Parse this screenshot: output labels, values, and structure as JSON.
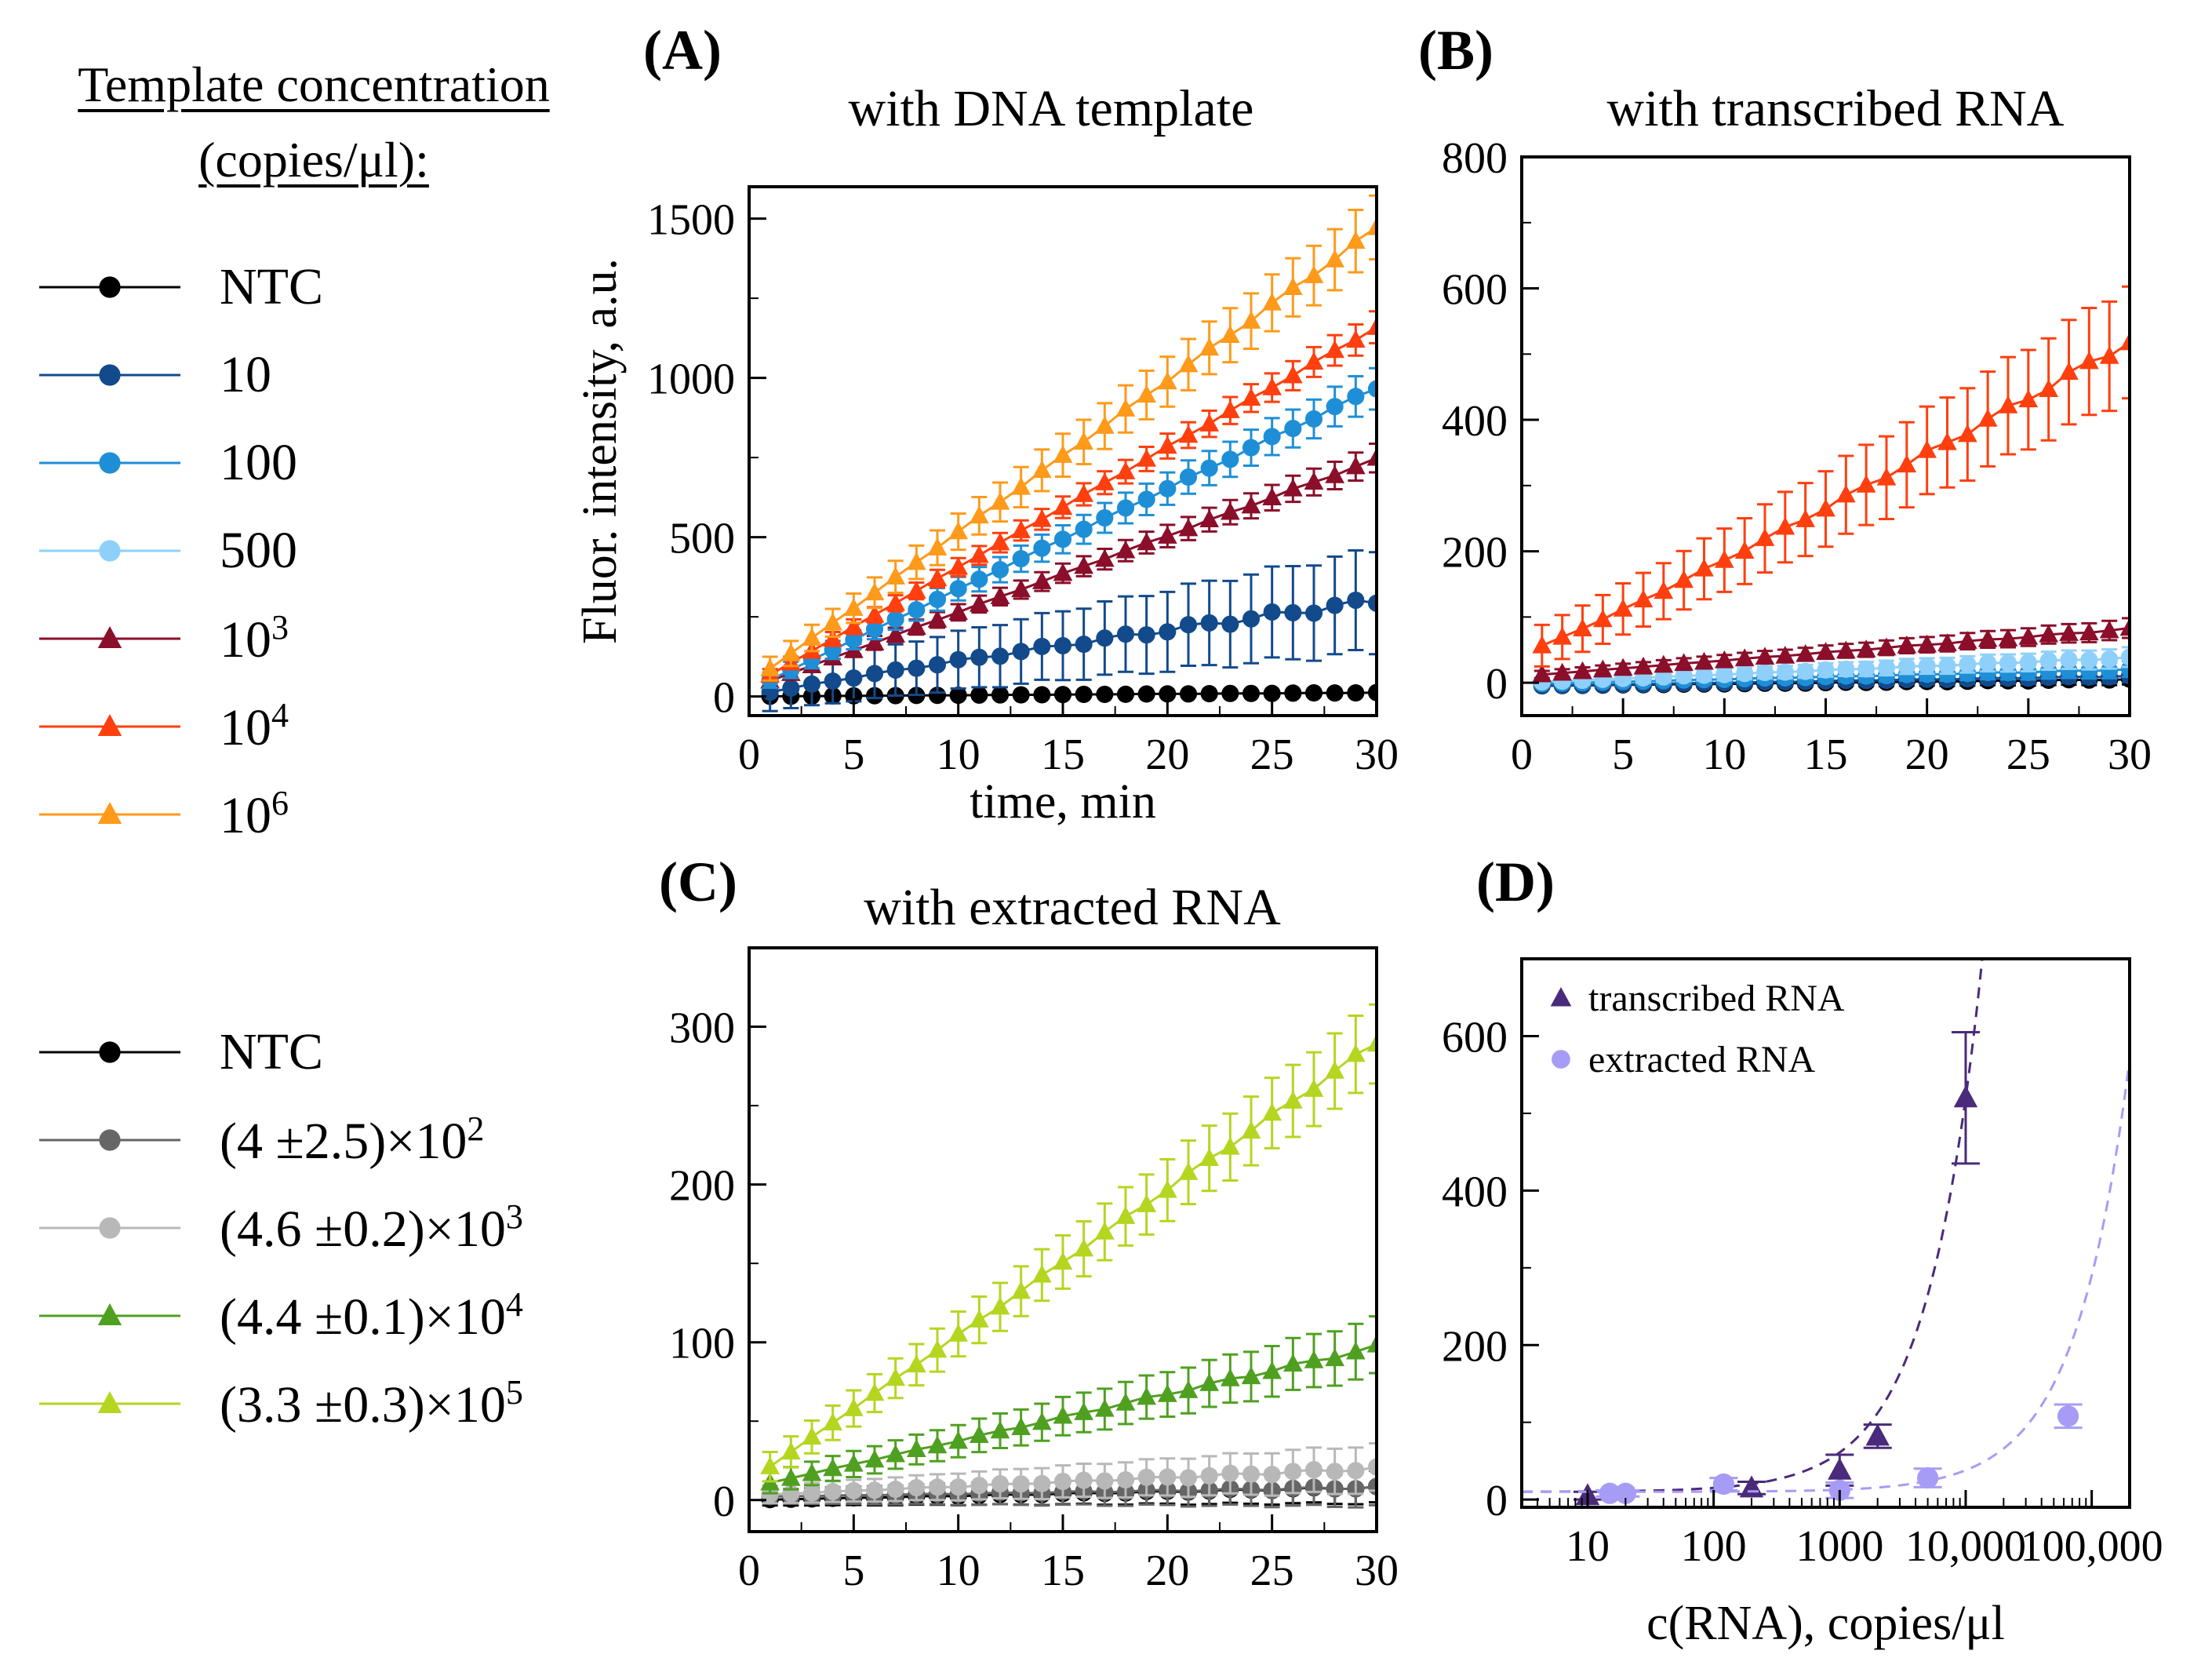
{
  "legend_top": {
    "title_line1": "Template concentration",
    "title_line2": "(copies/μl):",
    "items": [
      {
        "label": "NTC",
        "color": "#000000",
        "marker": "circle"
      },
      {
        "label": "10",
        "color": "#124a8c",
        "marker": "circle"
      },
      {
        "label": "100",
        "color": "#1e8fd6",
        "marker": "circle"
      },
      {
        "label": "500",
        "color": "#8fd0fa",
        "marker": "circle"
      },
      {
        "label": "10",
        "sup": "3",
        "color": "#8b0e2a",
        "marker": "triangle"
      },
      {
        "label": "10",
        "sup": "4",
        "color": "#ff3f0e",
        "marker": "triangle"
      },
      {
        "label": "10",
        "sup": "6",
        "color": "#ff9a1a",
        "marker": "triangle"
      }
    ]
  },
  "legend_bottom": {
    "items": [
      {
        "label": "NTC",
        "color": "#000000",
        "marker": "circle"
      },
      {
        "label": "(4 ±2.5)×10",
        "sup": "2",
        "color": "#666666",
        "marker": "circle"
      },
      {
        "label": "(4.6 ±0.2)×10",
        "sup": "3",
        "color": "#b8b8b8",
        "marker": "circle"
      },
      {
        "label": "(4.4 ±0.1)×10",
        "sup": "4",
        "color": "#4fa020",
        "marker": "triangle"
      },
      {
        "label": "(3.3 ±0.3)×10",
        "sup": "5",
        "color": "#b4d620",
        "marker": "triangle"
      }
    ]
  },
  "chart_data": [
    {
      "panel": "(A)",
      "type": "line",
      "title": "with DNA template",
      "xlabel": "time, min",
      "ylabel": "Fluor. intensity, a.u.",
      "xlim": [
        0,
        30
      ],
      "ylim": [
        -60,
        1600
      ],
      "xticks": [
        0,
        5,
        10,
        15,
        20,
        25,
        30
      ],
      "yticks": [
        0,
        500,
        1000,
        1500
      ],
      "ytick_labels": [
        "0",
        "500",
        "1000",
        "1500"
      ],
      "n_points": 30,
      "series": [
        {
          "name": "NTC",
          "color": "#000000",
          "marker": "circle",
          "end": 12,
          "err_end": 6
        },
        {
          "name": "10",
          "color": "#124a8c",
          "marker": "circle",
          "end": 300,
          "err_end": 160,
          "start_offset": -10,
          "curve": 0.9
        },
        {
          "name": "10^3",
          "color": "#8b0e2a",
          "marker": "triangle",
          "end": 745,
          "err_end": 45,
          "start": 25
        },
        {
          "name": "100",
          "color": "#1e8fd6",
          "marker": "circle",
          "end": 970,
          "err_end": 65,
          "start": 20
        },
        {
          "name": "10^4",
          "color": "#ff3f0e",
          "marker": "triangle",
          "end": 1160,
          "err_end": 50,
          "start": 30
        },
        {
          "name": "10^6",
          "color": "#ff9a1a",
          "marker": "triangle",
          "end": 1470,
          "err_end": 100,
          "start": 40
        }
      ]
    },
    {
      "panel": "(B)",
      "type": "line",
      "title": "with transcribed RNA",
      "xlabel": "",
      "ylabel": "",
      "xlim": [
        0,
        30
      ],
      "ylim": [
        -50,
        800
      ],
      "xticks": [
        0,
        5,
        10,
        15,
        20,
        25,
        30
      ],
      "yticks": [
        0,
        200,
        400,
        600,
        800
      ],
      "ytick_labels": [
        "0",
        "200",
        "400",
        "600",
        "800"
      ],
      "n_points": 30,
      "series": [
        {
          "name": "NTC",
          "color": "#000000",
          "marker": "circle",
          "end": 5,
          "err_end": 8,
          "start": -5
        },
        {
          "name": "10",
          "color": "#124a8c",
          "marker": "circle",
          "end": 10,
          "err_end": 10,
          "start": -5
        },
        {
          "name": "100",
          "color": "#1e8fd6",
          "marker": "circle",
          "end": 20,
          "err_end": 12,
          "start": -2
        },
        {
          "name": "500",
          "color": "#8fd0fa",
          "marker": "circle",
          "end": 38,
          "err_end": 15,
          "start": 0
        },
        {
          "name": "10^3",
          "color": "#8b0e2a",
          "marker": "triangle",
          "end": 82,
          "err_end": 15,
          "start": 10
        },
        {
          "name": "10^4",
          "color": "#ff3f0e",
          "marker": "triangle",
          "end": 520,
          "err_end": 85,
          "start": 45,
          "curve": 1.1
        }
      ]
    },
    {
      "panel": "(C)",
      "type": "line",
      "title": "with extracted RNA",
      "xlabel": "",
      "ylabel": "",
      "xlim": [
        0,
        30
      ],
      "ylim": [
        -20,
        350
      ],
      "xticks": [
        0,
        5,
        10,
        15,
        20,
        25,
        30
      ],
      "yticks": [
        0,
        100,
        200,
        300
      ],
      "ytick_labels": [
        "0",
        "100",
        "200",
        "300"
      ],
      "n_points": 30,
      "series": [
        {
          "name": "NTC",
          "color": "#000000",
          "marker": "circle",
          "end": 8,
          "err_end": 10,
          "start": 0
        },
        {
          "name": "(4 ±2.5)×10^2",
          "color": "#666666",
          "marker": "circle",
          "end": 8,
          "err_end": 12,
          "start": 2
        },
        {
          "name": "(4.6 ±0.2)×10^3",
          "color": "#b8b8b8",
          "marker": "circle",
          "end": 20,
          "err_end": 15,
          "start": 3
        },
        {
          "name": "(4.4 ±0.1)×10^4",
          "color": "#4fa020",
          "marker": "triangle",
          "end": 97,
          "err_end": 18,
          "start": 8
        },
        {
          "name": "(3.3 ±0.3)×10^5",
          "color": "#b4d620",
          "marker": "triangle",
          "end": 290,
          "err_end": 25,
          "start": 12
        }
      ]
    },
    {
      "panel": "(D)",
      "type": "scatter",
      "title": "",
      "xlabel": "c(RNA), copies/μl",
      "ylabel": "",
      "xscale": "log",
      "xlim": [
        3,
        200000
      ],
      "ylim": [
        -10,
        700
      ],
      "xticks": [
        10,
        100,
        1000,
        10000,
        100000
      ],
      "xtick_labels": [
        "10",
        "100",
        "1000",
        "10,000",
        "100,000"
      ],
      "yticks": [
        0,
        200,
        400,
        600
      ],
      "ytick_labels": [
        "0",
        "200",
        "400",
        "600"
      ],
      "legend_position": "top-left",
      "series": [
        {
          "name": "transcribed RNA",
          "color": "#4a2a7a",
          "marker": "triangle",
          "x": [
            10,
            200,
            1000,
            2000,
            10000
          ],
          "y": [
            5,
            15,
            38,
            82,
            520
          ],
          "err": [
            5,
            8,
            20,
            15,
            85
          ],
          "fit_intercept": 10,
          "fit_slope": 0.051
        },
        {
          "name": "extracted RNA",
          "color": "#a79cf5",
          "marker": "circle",
          "x": [
            15,
            20,
            120,
            1000,
            5000,
            65000
          ],
          "y": [
            8,
            8,
            20,
            12,
            28,
            108
          ],
          "err": [
            4,
            4,
            8,
            10,
            12,
            15
          ],
          "fit_intercept": 10,
          "fit_slope": 0.0028
        }
      ]
    }
  ]
}
